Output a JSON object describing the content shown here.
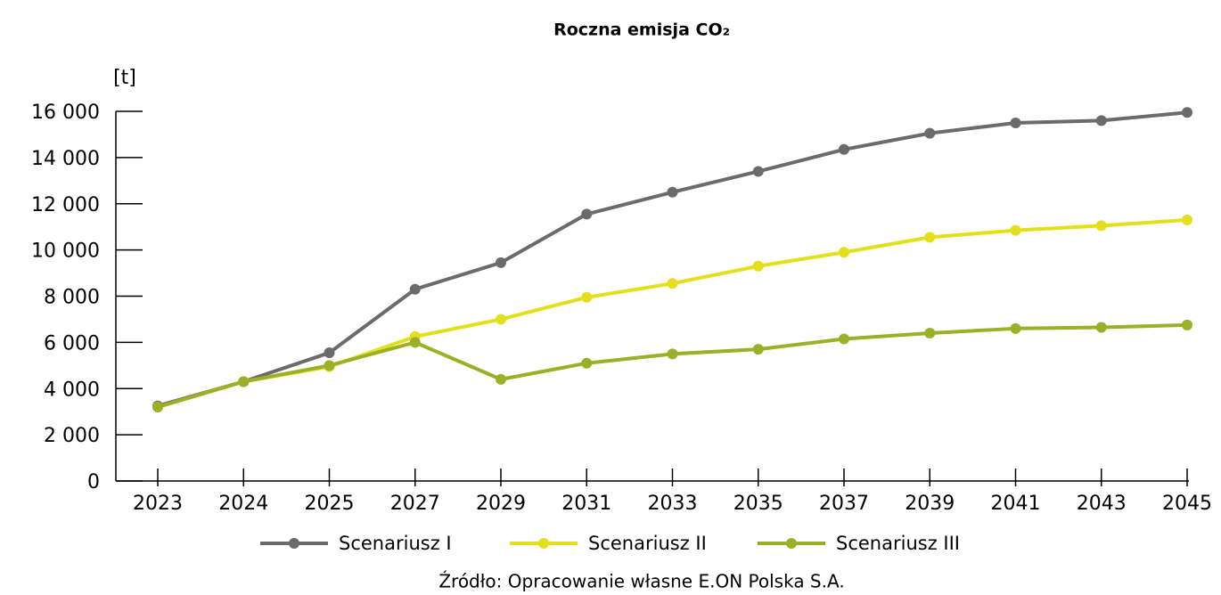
{
  "chart_data": {
    "type": "line",
    "title": "Roczna emisja CO₂",
    "y_label": "[t]",
    "categories": [
      "2023",
      "2024",
      "2025",
      "2027",
      "2029",
      "2031",
      "2033",
      "2035",
      "2037",
      "2039",
      "2041",
      "2043",
      "2045"
    ],
    "series": [
      {
        "name": "Scenariusz I",
        "color": "#6d6a6a",
        "values": [
          3250,
          4300,
          5550,
          8300,
          9450,
          11550,
          12500,
          13400,
          14350,
          15050,
          15500,
          15600,
          15950
        ]
      },
      {
        "name": "Scenariusz II",
        "color": "#e3e01b",
        "values": [
          3200,
          4300,
          4950,
          6250,
          7000,
          7950,
          8550,
          9300,
          9900,
          10550,
          10850,
          11050,
          11300
        ]
      },
      {
        "name": "Scenariusz III",
        "color": "#9bb026",
        "values": [
          3200,
          4300,
          5000,
          6000,
          4400,
          5100,
          5500,
          5700,
          6150,
          6400,
          6600,
          6650,
          6750
        ]
      }
    ],
    "ylim": [
      0,
      16000
    ],
    "yticks": [
      0,
      {
        "value": 2000,
        "label": "2 000"
      },
      {
        "value": 4000,
        "label": "4 000"
      },
      {
        "value": 6000,
        "label": "6 000"
      },
      {
        "value": 8000,
        "label": "8 000"
      },
      {
        "value": 10000,
        "label": "10 000"
      },
      {
        "value": 12000,
        "label": "12 000"
      },
      {
        "value": 14000,
        "label": "14 000"
      },
      {
        "value": 16000,
        "label": "16 000"
      }
    ],
    "legend": "bottom",
    "source": "Źródło: Opracowanie własne E.ON Polska S.A."
  }
}
